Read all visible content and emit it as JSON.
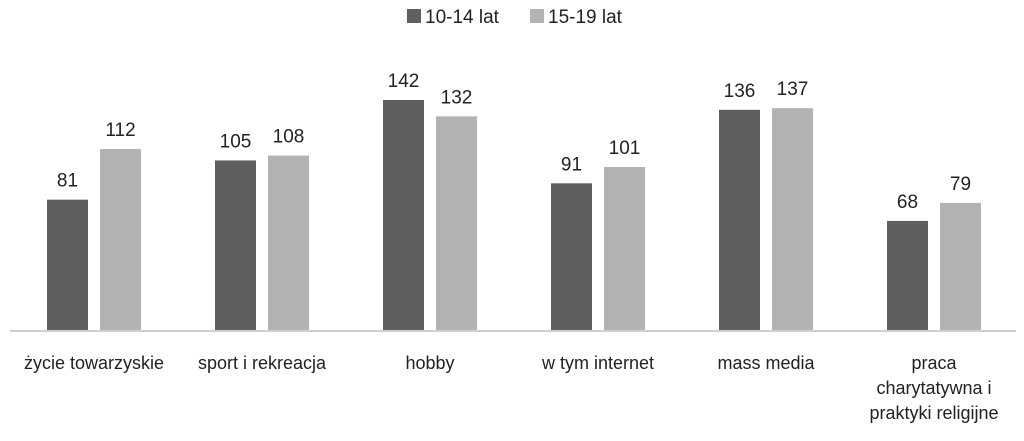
{
  "chart_data": {
    "type": "bar",
    "categories": [
      [
        "życie towarzyskie"
      ],
      [
        "sport i rekreacja"
      ],
      [
        "hobby"
      ],
      [
        "w tym internet"
      ],
      [
        "mass media"
      ],
      [
        "praca",
        "charytatywna i",
        "praktyki religijne"
      ]
    ],
    "series": [
      {
        "name": "10-14 lat",
        "color": "#5f5f5f",
        "values": [
          81,
          105,
          142,
          91,
          136,
          68
        ]
      },
      {
        "name": "15-19 lat",
        "color": "#b3b3b3",
        "values": [
          112,
          108,
          132,
          101,
          137,
          79
        ]
      }
    ],
    "ylim": [
      0,
      160
    ],
    "grid": false,
    "legend_position": "top-center",
    "data_labels": true
  }
}
